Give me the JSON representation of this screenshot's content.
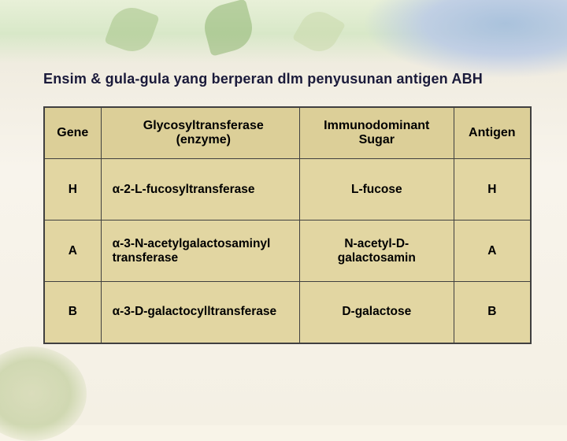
{
  "title": "Ensim & gula-gula yang berperan dlm penyusunan antigen ABH",
  "headers": {
    "gene": "Gene",
    "enzyme_line1": "Glycosyltransferase",
    "enzyme_line2": "(enzyme)",
    "sugar_line1": "Immunodominant",
    "sugar_line2": "Sugar",
    "antigen": "Antigen"
  },
  "rows": [
    {
      "gene": "H",
      "enzyme": "α-2-L-fucosyltransferase",
      "sugar": "L-fucose",
      "antigen": "H"
    },
    {
      "gene": "A",
      "enzyme": "α-3-N-acetylgalactosaminyl transferase",
      "sugar": "N-acetyl-D-galactosamin",
      "antigen": "A"
    },
    {
      "gene": "B",
      "enzyme": "α-3-D-galactocylltransferase",
      "sugar": "D-galactose",
      "antigen": "B"
    }
  ],
  "colors": {
    "table_bg": "#e2d6a2",
    "header_bg": "#dccf98",
    "border": "#404040",
    "title_color": "#1a1a3a"
  }
}
